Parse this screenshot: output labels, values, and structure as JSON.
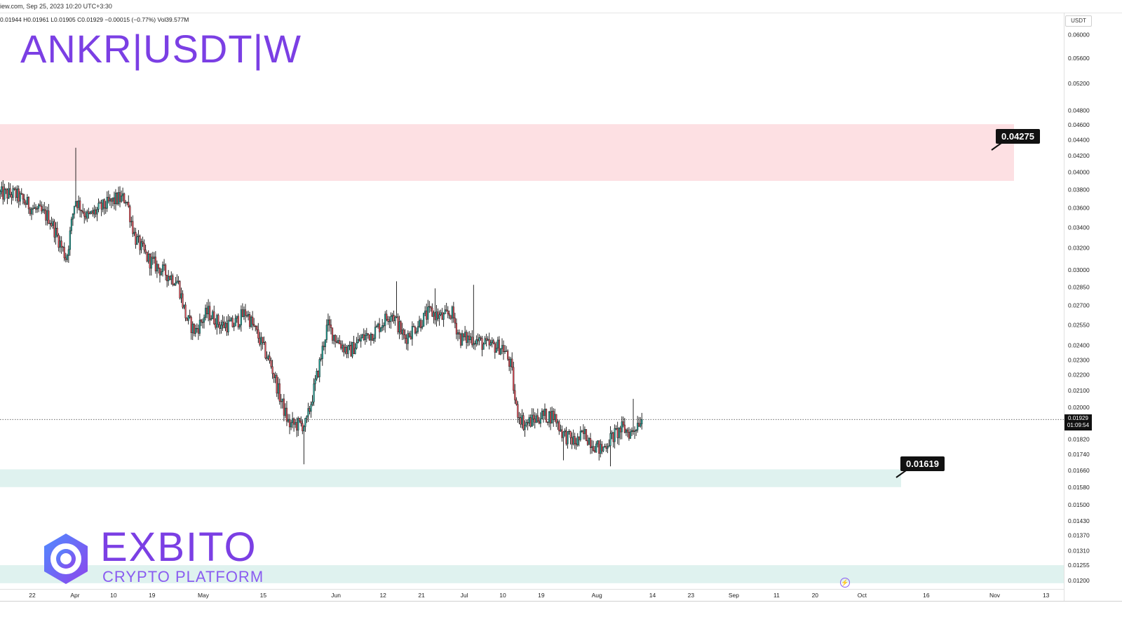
{
  "header": {
    "source_line": "iew.com, Sep 25, 2023 10:20 UTC+3:30",
    "ohlc_line": "0.01944  H0.01961  L0.01905  C0.01929  −0.00015 (−0.77%)  Vol39.577M"
  },
  "title": "ANKR|USDT|W",
  "brand": {
    "name": "EXBITO",
    "tagline": "CRYPTO PLATFORM",
    "color": "#7b3fe4"
  },
  "levels": {
    "resistance_label": "0.04275",
    "support_label": "0.01619"
  },
  "price_axis": {
    "currency": "USDT",
    "last_price": "0.01929",
    "countdown": "01:09:54"
  },
  "colors": {
    "resistance_zone": "#fde0e3",
    "support_zone": "#dff2ef",
    "candle_up": "#26a69a",
    "candle_down": "#e0505a",
    "candle_outline": "#111111",
    "accent": "#7b3fe4"
  },
  "chart_data": {
    "type": "candlestick",
    "y_scale": "log",
    "ylim": [
      0.0117,
      0.0625
    ],
    "y_ticks": [
      "0.06000",
      "0.05600",
      "0.05200",
      "0.04800",
      "0.04600",
      "0.04400",
      "0.04200",
      "0.04000",
      "0.03800",
      "0.03600",
      "0.03400",
      "0.03200",
      "0.03000",
      "0.02850",
      "0.02700",
      "0.02550",
      "0.02400",
      "0.02300",
      "0.02200",
      "0.02100",
      "0.02000",
      "0.01820",
      "0.01740",
      "0.01660",
      "0.01580",
      "0.01500",
      "0.01430",
      "0.01370",
      "0.01310",
      "0.01255",
      "0.01200"
    ],
    "x_ticks": [
      {
        "label": "22",
        "day": 0
      },
      {
        "label": "Apr",
        "day": 10
      },
      {
        "label": "10",
        "day": 19
      },
      {
        "label": "19",
        "day": 28
      },
      {
        "label": "May",
        "day": 40
      },
      {
        "label": "15",
        "day": 54
      },
      {
        "label": "Jun",
        "day": 71
      },
      {
        "label": "12",
        "day": 82
      },
      {
        "label": "21",
        "day": 91
      },
      {
        "label": "Jul",
        "day": 101
      },
      {
        "label": "10",
        "day": 110
      },
      {
        "label": "19",
        "day": 119
      },
      {
        "label": "Aug",
        "day": 132
      },
      {
        "label": "14",
        "day": 145
      },
      {
        "label": "23",
        "day": 154
      },
      {
        "label": "Sep",
        "day": 164
      },
      {
        "label": "11",
        "day": 174
      },
      {
        "label": "20",
        "day": 183
      },
      {
        "label": "Oct",
        "day": 194
      },
      {
        "label": "16",
        "day": 209
      },
      {
        "label": "Nov",
        "day": 225
      },
      {
        "label": "13",
        "day": 237
      }
    ],
    "resistance_zone": [
      0.039,
      0.0461
    ],
    "support_zone": [
      0.0158,
      0.01665
    ],
    "bottom_zone": [
      0.0119,
      0.01255
    ],
    "last_price": 0.01929,
    "anchors": [
      [
        -4,
        0.0375
      ],
      [
        0,
        0.036
      ],
      [
        4,
        0.035
      ],
      [
        8,
        0.031
      ],
      [
        10,
        0.037
      ],
      [
        13,
        0.035
      ],
      [
        16,
        0.036
      ],
      [
        20,
        0.037
      ],
      [
        22,
        0.037
      ],
      [
        24,
        0.033
      ],
      [
        27,
        0.031
      ],
      [
        30,
        0.03
      ],
      [
        34,
        0.029
      ],
      [
        36,
        0.026
      ],
      [
        38,
        0.025
      ],
      [
        41,
        0.0265
      ],
      [
        44,
        0.0255
      ],
      [
        47,
        0.0255
      ],
      [
        50,
        0.0265
      ],
      [
        53,
        0.0245
      ],
      [
        56,
        0.0225
      ],
      [
        58,
        0.0205
      ],
      [
        60,
        0.019
      ],
      [
        64,
        0.019
      ],
      [
        67,
        0.0225
      ],
      [
        69,
        0.0255
      ],
      [
        71,
        0.0245
      ],
      [
        74,
        0.0235
      ],
      [
        77,
        0.0245
      ],
      [
        80,
        0.025
      ],
      [
        84,
        0.0265
      ],
      [
        87,
        0.0245
      ],
      [
        90,
        0.0255
      ],
      [
        93,
        0.0265
      ],
      [
        96,
        0.026
      ],
      [
        98,
        0.0265
      ],
      [
        100,
        0.0245
      ],
      [
        103,
        0.0245
      ],
      [
        106,
        0.024
      ],
      [
        110,
        0.0239
      ],
      [
        112,
        0.0225
      ],
      [
        113,
        0.02
      ],
      [
        115,
        0.019
      ],
      [
        119,
        0.0195
      ],
      [
        122,
        0.0195
      ],
      [
        124,
        0.0185
      ],
      [
        127,
        0.018
      ],
      [
        129,
        0.0185
      ],
      [
        131,
        0.018
      ],
      [
        133,
        0.0176
      ],
      [
        135,
        0.0182
      ],
      [
        138,
        0.0188
      ],
      [
        140,
        0.0185
      ],
      [
        142,
        0.0193
      ]
    ],
    "spikes": [
      {
        "day": 10.2,
        "high": 0.043
      },
      {
        "day": 63.5,
        "low": 0.0169
      },
      {
        "day": 85,
        "high": 0.029
      },
      {
        "day": 94,
        "high": 0.0284
      },
      {
        "day": 103,
        "high": 0.0287
      },
      {
        "day": 110,
        "low": 0.023
      },
      {
        "day": 124,
        "low": 0.0171
      },
      {
        "day": 135,
        "low": 0.0168
      },
      {
        "day": 140.5,
        "high": 0.0205
      }
    ]
  }
}
